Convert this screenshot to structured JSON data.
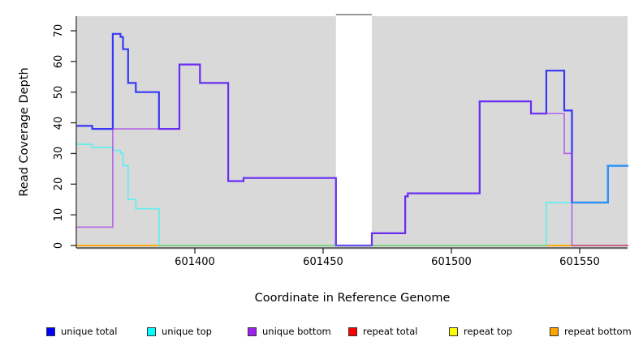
{
  "figure": {
    "background": "#FFFFFF",
    "panel_background": "#D9D9D9"
  },
  "chart_data": {
    "type": "line",
    "subtype": "step",
    "title": "",
    "xlabel": "Coordinate in Reference Genome",
    "ylabel": "Read Coverage Depth",
    "x_ticks": [
      601400,
      601450,
      601500,
      601550
    ],
    "y_ticks": [
      0,
      10,
      20,
      30,
      40,
      50,
      60,
      70
    ],
    "x_range": [
      601354,
      601569
    ],
    "x_end": 601569,
    "ylim": [
      0,
      76
    ],
    "grid": false,
    "legend_position": "bottom",
    "masked_region": {
      "x_start": 601455,
      "x_end": 601469,
      "fill": "#FFFFFF",
      "border": "#999999"
    },
    "series": [
      {
        "name": "repeat total",
        "color": "#FF0000",
        "steps": [
          [
            601354,
            0
          ]
        ]
      },
      {
        "name": "repeat top",
        "color": "#FFFF00",
        "steps": [
          [
            601354,
            0
          ]
        ]
      },
      {
        "name": "repeat bottom",
        "color": "#FFA500",
        "steps": [
          [
            601354,
            0
          ]
        ]
      },
      {
        "name": "unique total",
        "color": "#0000FF",
        "steps": [
          [
            601354,
            39
          ],
          [
            601360,
            38
          ],
          [
            601368,
            69
          ],
          [
            601371,
            68
          ],
          [
            601372,
            64
          ],
          [
            601374,
            53
          ],
          [
            601377,
            50
          ],
          [
            601386,
            38
          ],
          [
            601394,
            59
          ],
          [
            601402,
            53
          ],
          [
            601413,
            21
          ],
          [
            601419,
            22
          ],
          [
            601455,
            0
          ],
          [
            601469,
            4
          ],
          [
            601482,
            16
          ],
          [
            601483,
            17
          ],
          [
            601511,
            47
          ],
          [
            601531,
            43
          ],
          [
            601537,
            57
          ],
          [
            601544,
            44
          ],
          [
            601547,
            14
          ],
          [
            601561,
            26
          ]
        ]
      },
      {
        "name": "unique top",
        "color": "#00FFFF",
        "steps": [
          [
            601354,
            33
          ],
          [
            601360,
            32
          ],
          [
            601368,
            31
          ],
          [
            601371,
            30
          ],
          [
            601372,
            26
          ],
          [
            601374,
            15
          ],
          [
            601377,
            12
          ],
          [
            601386,
            0
          ],
          [
            601537,
            14
          ],
          [
            601561,
            26
          ]
        ]
      },
      {
        "name": "unique bottom",
        "color": "#A020F0",
        "steps": [
          [
            601354,
            6
          ],
          [
            601368,
            38
          ],
          [
            601394,
            59
          ],
          [
            601402,
            53
          ],
          [
            601413,
            21
          ],
          [
            601419,
            22
          ],
          [
            601455,
            0
          ],
          [
            601469,
            4
          ],
          [
            601482,
            16
          ],
          [
            601483,
            17
          ],
          [
            601511,
            47
          ],
          [
            601531,
            43
          ],
          [
            601544,
            30
          ],
          [
            601547,
            0
          ]
        ]
      }
    ]
  },
  "legend": {
    "items": [
      {
        "label": "unique total",
        "color": "#0000FF"
      },
      {
        "label": "unique top",
        "color": "#00FFFF"
      },
      {
        "label": "unique bottom",
        "color": "#A020F0"
      },
      {
        "label": "repeat total",
        "color": "#FF0000"
      },
      {
        "label": "repeat top",
        "color": "#FFFF00"
      },
      {
        "label": "repeat bottom",
        "color": "#FFA500"
      }
    ]
  }
}
